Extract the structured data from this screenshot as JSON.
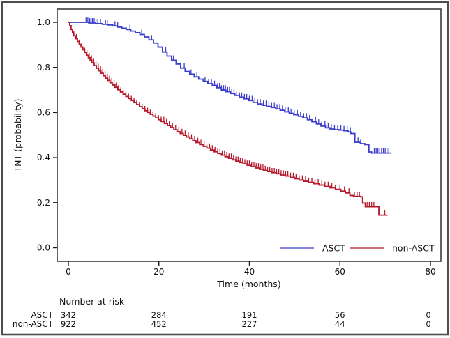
{
  "figure": {
    "background": "#ffffff",
    "outer_border_color": "#4d4d4d",
    "plot_box_color": "#3c3c3c"
  },
  "chart_data": {
    "type": "line",
    "subtype": "kaplan-meier-step-curves",
    "title": "",
    "xlabel": "Time (months)",
    "ylabel": "TNT (probability)",
    "xlim": [
      0,
      80
    ],
    "ylim": [
      0.0,
      1.0
    ],
    "x_ticks": [
      0,
      20,
      40,
      60,
      80
    ],
    "y_ticks": [
      0.0,
      0.2,
      0.4,
      0.6,
      0.8,
      1.0
    ],
    "x_tick_labels": [
      "0",
      "20",
      "40",
      "60",
      "80"
    ],
    "y_tick_labels": [
      "0.0",
      "0.2",
      "0.4",
      "0.6",
      "0.8",
      "1.0"
    ],
    "grid": false,
    "legend_position": "inside-bottom-right",
    "series": [
      {
        "name": "ASCT",
        "color": "#3a3ccc",
        "points": [
          [
            0,
            1.0
          ],
          [
            4.5,
            0.997
          ],
          [
            6.0,
            0.994
          ],
          [
            7.5,
            0.991
          ],
          [
            8.7,
            0.988
          ],
          [
            9.8,
            0.984
          ],
          [
            10.8,
            0.979
          ],
          [
            11.8,
            0.974
          ],
          [
            12.8,
            0.968
          ],
          [
            13.8,
            0.961
          ],
          [
            14.8,
            0.954
          ],
          [
            15.8,
            0.946
          ],
          [
            16.8,
            0.935
          ],
          [
            17.8,
            0.922
          ],
          [
            18.8,
            0.908
          ],
          [
            19.8,
            0.89
          ],
          [
            20.8,
            0.868
          ],
          [
            21.8,
            0.85
          ],
          [
            22.8,
            0.832
          ],
          [
            23.8,
            0.815
          ],
          [
            24.8,
            0.797
          ],
          [
            25.8,
            0.782
          ],
          [
            26.8,
            0.77
          ],
          [
            27.8,
            0.758
          ],
          [
            28.8,
            0.748
          ],
          [
            29.8,
            0.738
          ],
          [
            30.8,
            0.728
          ],
          [
            31.8,
            0.72
          ],
          [
            32.8,
            0.71
          ],
          [
            33.8,
            0.7
          ],
          [
            34.8,
            0.692
          ],
          [
            35.8,
            0.684
          ],
          [
            36.8,
            0.676
          ],
          [
            37.8,
            0.668
          ],
          [
            38.8,
            0.661
          ],
          [
            39.8,
            0.653
          ],
          [
            40.8,
            0.645
          ],
          [
            41.8,
            0.638
          ],
          [
            42.8,
            0.632
          ],
          [
            43.8,
            0.627
          ],
          [
            44.8,
            0.622
          ],
          [
            45.8,
            0.616
          ],
          [
            46.8,
            0.61
          ],
          [
            47.8,
            0.603
          ],
          [
            48.8,
            0.596
          ],
          [
            49.8,
            0.59
          ],
          [
            50.8,
            0.583
          ],
          [
            51.8,
            0.576
          ],
          [
            52.8,
            0.568
          ],
          [
            53.8,
            0.559
          ],
          [
            54.8,
            0.549
          ],
          [
            55.8,
            0.54
          ],
          [
            56.8,
            0.532
          ],
          [
            57.8,
            0.527
          ],
          [
            58.8,
            0.524
          ],
          [
            59.8,
            0.522
          ],
          [
            60.8,
            0.519
          ],
          [
            61.8,
            0.514
          ],
          [
            62.4,
            0.507
          ],
          [
            63.3,
            0.468
          ],
          [
            64.5,
            0.462
          ],
          [
            65.5,
            0.458
          ],
          [
            66.4,
            0.425
          ],
          [
            67.0,
            0.42
          ],
          [
            71.2,
            0.42
          ]
        ],
        "censor_marks": [
          3.9,
          4.3,
          4.7,
          5.0,
          5.3,
          5.7,
          6.1,
          6.5,
          7.1,
          8.2,
          8.6,
          10.3,
          10.9,
          13.6,
          16.2,
          18.4,
          21.5,
          23.2,
          25.6,
          27.1,
          28.4,
          30.2,
          31.0,
          31.6,
          32.3,
          33.0,
          33.4,
          33.8,
          34.3,
          34.7,
          35.2,
          35.6,
          36.1,
          36.6,
          37.2,
          37.8,
          38.3,
          38.9,
          39.4,
          40.0,
          40.6,
          41.2,
          41.8,
          42.4,
          43.1,
          43.7,
          44.3,
          44.9,
          45.5,
          46.1,
          46.7,
          47.3,
          47.9,
          48.6,
          49.2,
          49.9,
          50.6,
          51.3,
          52.0,
          52.6,
          53.3,
          54.6,
          55.3,
          56.0,
          56.7,
          57.4,
          58.1,
          58.8,
          59.5,
          60.2,
          60.9,
          61.6,
          62.3,
          64.0,
          64.6,
          67.6,
          68.0,
          68.4,
          68.8,
          69.2,
          69.6,
          70.0,
          70.4,
          70.8
        ]
      },
      {
        "name": "non-ASCT",
        "color": "#b5172b",
        "points": [
          [
            0,
            1.0
          ],
          [
            0.3,
            0.985
          ],
          [
            0.6,
            0.968
          ],
          [
            0.9,
            0.953
          ],
          [
            1.2,
            0.94
          ],
          [
            1.6,
            0.927
          ],
          [
            2.0,
            0.915
          ],
          [
            2.4,
            0.902
          ],
          [
            2.8,
            0.89
          ],
          [
            3.2,
            0.878
          ],
          [
            3.6,
            0.866
          ],
          [
            4.0,
            0.854
          ],
          [
            4.4,
            0.843
          ],
          [
            4.8,
            0.832
          ],
          [
            5.2,
            0.82
          ],
          [
            5.7,
            0.808
          ],
          [
            6.2,
            0.796
          ],
          [
            6.7,
            0.785
          ],
          [
            7.2,
            0.774
          ],
          [
            7.7,
            0.763
          ],
          [
            8.2,
            0.752
          ],
          [
            8.7,
            0.742
          ],
          [
            9.2,
            0.732
          ],
          [
            9.7,
            0.722
          ],
          [
            10.3,
            0.712
          ],
          [
            10.9,
            0.701
          ],
          [
            11.5,
            0.691
          ],
          [
            12.1,
            0.681
          ],
          [
            12.7,
            0.671
          ],
          [
            13.3,
            0.662
          ],
          [
            13.9,
            0.653
          ],
          [
            14.5,
            0.644
          ],
          [
            15.1,
            0.635
          ],
          [
            15.7,
            0.626
          ],
          [
            16.3,
            0.617
          ],
          [
            16.9,
            0.608
          ],
          [
            17.5,
            0.6
          ],
          [
            18.1,
            0.592
          ],
          [
            18.7,
            0.584
          ],
          [
            19.3,
            0.576
          ],
          [
            19.9,
            0.568
          ],
          [
            20.5,
            0.56
          ],
          [
            21.2,
            0.551
          ],
          [
            21.9,
            0.542
          ],
          [
            22.6,
            0.533
          ],
          [
            23.3,
            0.524
          ],
          [
            24.0,
            0.515
          ],
          [
            24.7,
            0.507
          ],
          [
            25.4,
            0.499
          ],
          [
            26.1,
            0.491
          ],
          [
            26.8,
            0.483
          ],
          [
            27.5,
            0.475
          ],
          [
            28.2,
            0.467
          ],
          [
            29.0,
            0.458
          ],
          [
            29.8,
            0.45
          ],
          [
            30.6,
            0.442
          ],
          [
            31.4,
            0.434
          ],
          [
            32.2,
            0.426
          ],
          [
            33.0,
            0.418
          ],
          [
            33.8,
            0.411
          ],
          [
            34.6,
            0.404
          ],
          [
            35.4,
            0.397
          ],
          [
            36.2,
            0.39
          ],
          [
            37.0,
            0.384
          ],
          [
            37.8,
            0.378
          ],
          [
            38.6,
            0.372
          ],
          [
            39.5,
            0.366
          ],
          [
            40.4,
            0.36
          ],
          [
            41.3,
            0.354
          ],
          [
            42.2,
            0.348
          ],
          [
            43.1,
            0.343
          ],
          [
            44.0,
            0.338
          ],
          [
            45.0,
            0.333
          ],
          [
            46.0,
            0.328
          ],
          [
            47.0,
            0.323
          ],
          [
            48.0,
            0.318
          ],
          [
            49.0,
            0.312
          ],
          [
            50.0,
            0.306
          ],
          [
            51.0,
            0.3
          ],
          [
            52.0,
            0.295
          ],
          [
            53.0,
            0.29
          ],
          [
            54.2,
            0.284
          ],
          [
            55.4,
            0.278
          ],
          [
            56.6,
            0.272
          ],
          [
            57.8,
            0.266
          ],
          [
            59.0,
            0.259
          ],
          [
            60.2,
            0.251
          ],
          [
            61.2,
            0.243
          ],
          [
            62.2,
            0.232
          ],
          [
            63.0,
            0.228
          ],
          [
            64.6,
            0.226
          ],
          [
            65.0,
            0.198
          ],
          [
            65.6,
            0.182
          ],
          [
            68.6,
            0.145
          ],
          [
            70.5,
            0.145
          ]
        ],
        "censor_marks": [
          1.2,
          1.8,
          2.4,
          3.0,
          3.6,
          4.1,
          4.6,
          5.1,
          5.6,
          6.1,
          6.6,
          7.1,
          7.6,
          8.1,
          8.6,
          9.1,
          9.6,
          10.1,
          10.6,
          11.1,
          11.6,
          12.1,
          12.7,
          13.3,
          13.9,
          14.5,
          15.1,
          15.7,
          16.3,
          16.9,
          17.5,
          18.1,
          18.7,
          19.3,
          19.9,
          20.5,
          21.1,
          21.7,
          22.3,
          23.0,
          23.7,
          24.4,
          25.1,
          25.8,
          26.5,
          27.2,
          27.9,
          28.6,
          29.3,
          30.0,
          30.6,
          31.2,
          31.8,
          32.4,
          33.0,
          33.5,
          34.0,
          34.5,
          35.0,
          35.5,
          36.0,
          36.5,
          37.0,
          37.5,
          38.0,
          38.5,
          39.0,
          39.5,
          40.0,
          40.5,
          41.0,
          41.5,
          42.0,
          42.5,
          43.0,
          43.5,
          44.0,
          44.5,
          45.0,
          45.5,
          46.0,
          46.5,
          47.0,
          47.5,
          48.0,
          48.5,
          49.1,
          49.7,
          50.3,
          51.0,
          51.7,
          52.4,
          53.1,
          53.8,
          54.5,
          55.2,
          56.0,
          56.7,
          57.4,
          58.2,
          59.0,
          60.0,
          61.0,
          62.0,
          63.2,
          63.8,
          64.3,
          66.0,
          66.5,
          67.0,
          67.5,
          69.9
        ]
      }
    ]
  },
  "risk_table": {
    "title": "Number at risk",
    "time_points": [
      0,
      20,
      40,
      60,
      80
    ],
    "rows": [
      {
        "label": "ASCT",
        "values": [
          "342",
          "284",
          "191",
          "56",
          "0"
        ]
      },
      {
        "label": "non-ASCT",
        "values": [
          "922",
          "452",
          "227",
          "44",
          "0"
        ]
      }
    ]
  }
}
